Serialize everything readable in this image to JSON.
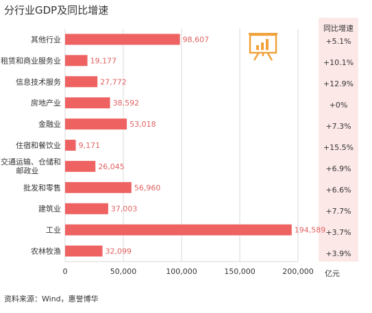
{
  "title": "分行业GDP及同比增速",
  "source": "资料来源：Wind，惠誉博华",
  "growth_header": "同比增速",
  "unit": "亿元",
  "colors": {
    "bar": "#ee6262",
    "label": "#e26060",
    "panel": "#fde8e8",
    "icon": "#f0a13a"
  },
  "icon": "presentation-chart-icon",
  "chart_data": {
    "type": "bar",
    "orientation": "horizontal",
    "title": "分行业GDP及同比增速",
    "categories": [
      "其他行业",
      "租赁和商业服务业",
      "信息技术服务",
      "房地产业",
      "金融业",
      "住宿和餐饮业",
      "交通运输、仓储和邮政业",
      "批发和零售",
      "建筑业",
      "工业",
      "农林牧渔"
    ],
    "category_lines": [
      [
        "其他行业"
      ],
      [
        "租赁和商业服务业"
      ],
      [
        "信息技术服务"
      ],
      [
        "房地产业"
      ],
      [
        "金融业"
      ],
      [
        "住宿和餐饮业"
      ],
      [
        "交通运输、仓储和",
        "邮政业"
      ],
      [
        "批发和零售"
      ],
      [
        "建筑业"
      ],
      [
        "工业"
      ],
      [
        "农林牧渔"
      ]
    ],
    "values": [
      98607,
      19177,
      27772,
      38592,
      53018,
      9171,
      26045,
      56960,
      37003,
      194589,
      32099
    ],
    "value_labels": [
      "98,607",
      "19,177",
      "27,772",
      "38,592",
      "53,018",
      "9,171",
      "26,045",
      "56,960",
      "37,003",
      "194,589",
      "32,099"
    ],
    "growth": [
      "+5.1%",
      "+10.1%",
      "+12.9%",
      "+0%",
      "+7.3%",
      "+15.5%",
      "+6.9%",
      "+6.6%",
      "+7.7%",
      "+3.7%",
      "+3.9%"
    ],
    "xlim": [
      0,
      200000
    ],
    "xticks": [
      0,
      50000,
      100000,
      150000,
      200000
    ],
    "xtick_labels": [
      "0",
      "50,000",
      "100,000",
      "150,000",
      "200,000"
    ],
    "xlabel": "亿元",
    "grid": true
  }
}
